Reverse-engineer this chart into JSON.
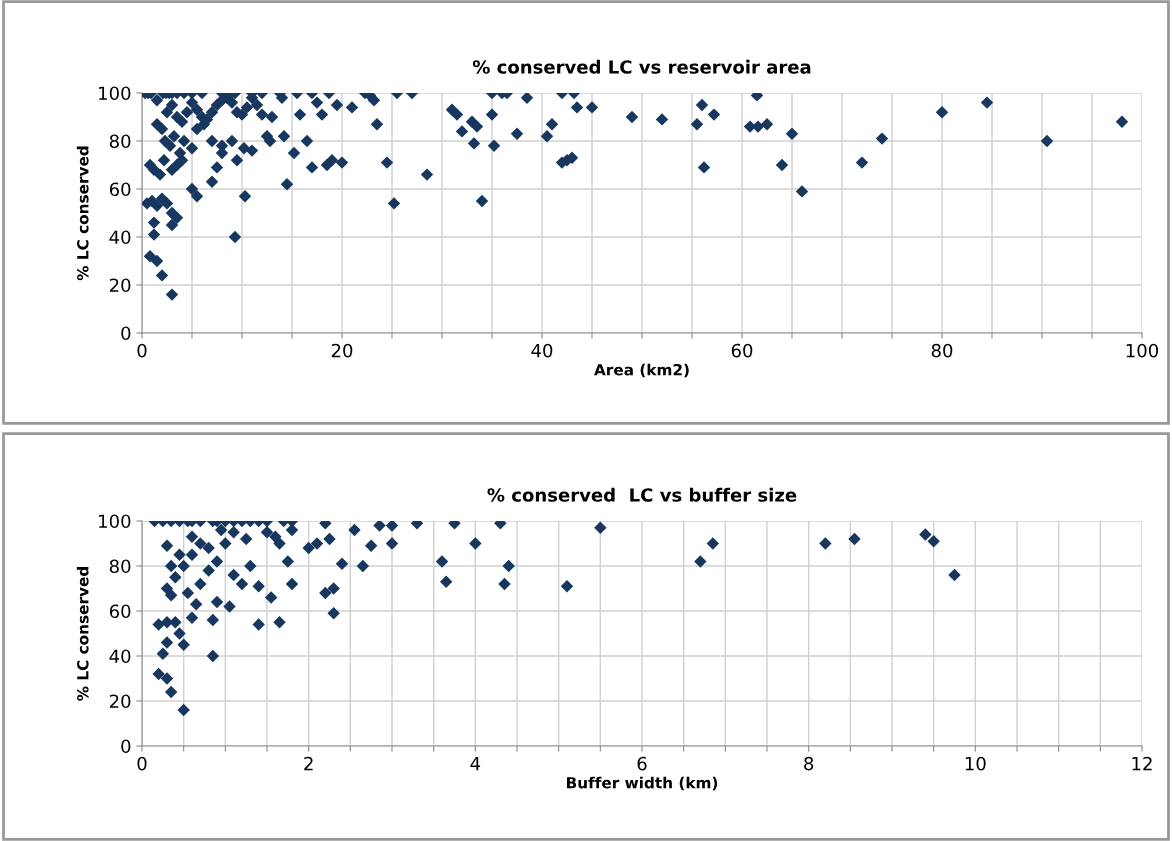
{
  "chart_data": [
    {
      "type": "scatter",
      "title": "% conserved LC vs reservoir area",
      "xlabel": "Area (km2)",
      "ylabel": "% LC conserved",
      "marker": "diamond",
      "grid": true,
      "xlim": [
        0,
        100
      ],
      "ylim": [
        0,
        100
      ],
      "yticks": [
        0,
        20,
        40,
        60,
        80,
        100
      ],
      "xticks": [
        0,
        {
          "value": 5,
          "label": null
        },
        {
          "value": 10,
          "label": null
        },
        {
          "value": 15,
          "label": null
        },
        20,
        {
          "value": 25,
          "label": null
        },
        {
          "value": 30,
          "label": null
        },
        {
          "value": 35,
          "label": null
        },
        40,
        {
          "value": 45,
          "label": null
        },
        {
          "value": 50,
          "label": null
        },
        {
          "value": 55,
          "label": null
        },
        60,
        {
          "value": 65,
          "label": null
        },
        {
          "value": 70,
          "label": null
        },
        {
          "value": 75,
          "label": null
        },
        80,
        {
          "value": 85,
          "label": null
        },
        {
          "value": 90,
          "label": null
        },
        {
          "value": 95,
          "label": null
        },
        100
      ],
      "series": [
        {
          "color": "#17375e",
          "x": [
            0.3,
            0.6,
            0.9,
            2.1,
            2.4,
            2.7,
            3.0,
            3.5,
            4.2,
            5,
            6,
            8,
            8.8,
            9.3,
            11,
            12,
            13.8,
            15.5,
            17,
            18.7,
            22.3,
            25.5,
            27,
            35,
            36.5,
            42,
            43.2,
            1.5,
            2.5,
            3,
            3.5,
            4,
            4.5,
            5,
            5.5,
            6,
            6.5,
            7,
            7.5,
            8,
            8.5,
            9,
            9.5,
            10,
            10.5,
            11,
            11.5,
            12,
            13,
            14,
            1.5,
            2,
            2.3,
            2.8,
            3.2,
            3.8,
            4.2,
            5,
            5.5,
            6.2,
            7,
            8,
            9,
            9.5,
            10.2,
            11,
            0.8,
            1.2,
            1.8,
            2.2,
            3,
            3.5,
            4,
            5,
            5.5,
            7,
            7.5,
            8,
            0.5,
            1,
            1.5,
            2,
            2.5,
            3,
            3.5,
            3,
            1.2,
            1.2,
            9.3,
            10.3,
            0.8,
            1.5,
            2,
            3,
            12.5,
            12.8,
            14.2,
            14.5,
            15.2,
            15.8,
            16.5,
            17,
            17.5,
            18,
            18.5,
            19,
            19.5,
            20,
            21,
            22.8,
            23.2,
            23.5,
            24.5,
            25.2,
            28.5,
            31,
            31.5,
            32,
            33,
            33.2,
            33.5,
            34,
            35,
            35.2,
            36,
            37.5,
            38.5,
            40.5,
            41,
            42,
            42.5,
            43,
            43.5,
            45,
            49,
            52,
            55.5,
            56,
            56.2,
            57.2,
            60.8,
            61.5,
            61.6,
            62.5,
            64,
            65,
            66,
            72,
            74,
            80,
            84.5,
            90.5,
            98
          ],
          "values": [
            100,
            100,
            100,
            100,
            100,
            100,
            100,
            100,
            100,
            100,
            100,
            100,
            100,
            100,
            100,
            100,
            100,
            100,
            100,
            100,
            100,
            100,
            100,
            100,
            100,
            100,
            100,
            97,
            92,
            95,
            90,
            88,
            92,
            96,
            93,
            90,
            89,
            92,
            95,
            97,
            98,
            96,
            92,
            91,
            94,
            98,
            95,
            91,
            90,
            98,
            87,
            85,
            80,
            78,
            82,
            75,
            80,
            77,
            85,
            87,
            80,
            78,
            80,
            72,
            77,
            76,
            70,
            68,
            66,
            72,
            68,
            70,
            72,
            60,
            57,
            63,
            69,
            75,
            54,
            55,
            53,
            56,
            54,
            50,
            48,
            45,
            46,
            41,
            40,
            57,
            32,
            30,
            24,
            16,
            82,
            80,
            82,
            62,
            75,
            91,
            80,
            69,
            96,
            91,
            70,
            72,
            95,
            71,
            94,
            99,
            97,
            87,
            71,
            54,
            66,
            93,
            91,
            84,
            88,
            79,
            86,
            55,
            91,
            78,
            100,
            83,
            98,
            82,
            87,
            71,
            72,
            73,
            94,
            94,
            90,
            89,
            87,
            95,
            69,
            91,
            86,
            99,
            86,
            87,
            70,
            83,
            59,
            71,
            81,
            92,
            96,
            80,
            88
          ]
        }
      ]
    },
    {
      "type": "scatter",
      "title": "% conserved  LC vs buffer size",
      "xlabel": "Buffer width (km)",
      "ylabel": "% LC conserved",
      "marker": "diamond",
      "grid": true,
      "xlim": [
        0,
        12
      ],
      "ylim": [
        0,
        100
      ],
      "yticks": [
        0,
        20,
        40,
        60,
        80,
        100
      ],
      "xticks": [
        0,
        {
          "value": 0.5,
          "label": null
        },
        {
          "value": 1,
          "label": null
        },
        {
          "value": 1.5,
          "label": null
        },
        2,
        {
          "value": 2.5,
          "label": null
        },
        {
          "value": 3,
          "label": null
        },
        {
          "value": 3.5,
          "label": null
        },
        4,
        {
          "value": 4.5,
          "label": null
        },
        {
          "value": 5,
          "label": null
        },
        {
          "value": 5.5,
          "label": null
        },
        6,
        {
          "value": 6.5,
          "label": null
        },
        {
          "value": 7,
          "label": null
        },
        {
          "value": 7.5,
          "label": null
        },
        8,
        {
          "value": 8.5,
          "label": null
        },
        {
          "value": 9,
          "label": null
        },
        {
          "value": 9.5,
          "label": null
        },
        10,
        {
          "value": 10.5,
          "label": null
        },
        {
          "value": 11,
          "label": null
        },
        {
          "value": 11.5,
          "label": null
        },
        12
      ],
      "series": [
        {
          "color": "#17375e",
          "x": [
            0.15,
            0.25,
            0.35,
            0.45,
            0.55,
            0.6,
            0.7,
            0.85,
            0.9,
            1.0,
            1.1,
            1.2,
            1.3,
            1.4,
            1.5,
            1.7,
            1.8,
            2.2,
            3.0,
            3.3,
            3.75,
            4.3,
            5.5,
            2.85,
            2.55,
            2.25,
            2.1,
            2.0,
            1.8,
            1.65,
            1.5,
            0.3,
            0.35,
            0.4,
            0.5,
            0.6,
            0.7,
            0.8,
            0.9,
            1.0,
            1.1,
            1.2,
            1.3,
            1.4,
            1.55,
            1.6,
            1.75,
            1.8,
            2.2,
            2.3,
            2.4,
            2.65,
            2.75,
            3.0,
            3.6,
            3.65,
            4.0,
            4.35,
            4.4,
            5.1,
            6.7,
            6.85,
            8.2,
            8.55,
            9.4,
            9.5,
            9.75,
            0.2,
            0.3,
            0.4,
            0.45,
            0.5,
            0.25,
            0.3,
            0.6,
            0.65,
            0.85,
            1.4,
            1.65,
            0.85,
            0.2,
            0.3,
            0.35,
            0.5,
            2.3,
            0.9,
            1.05,
            0.55,
            0.7,
            0.45,
            0.8,
            1.1,
            1.25,
            0.95,
            0.6,
            0.3,
            0.35
          ],
          "values": [
            100,
            100,
            100,
            100,
            100,
            100,
            100,
            100,
            100,
            100,
            100,
            100,
            100,
            100,
            100,
            100,
            100,
            99,
            98,
            99,
            99,
            99,
            97,
            98,
            96,
            92,
            90,
            88,
            96,
            90,
            95,
            70,
            67,
            75,
            80,
            85,
            90,
            88,
            82,
            90,
            76,
            72,
            80,
            71,
            66,
            93,
            82,
            72,
            68,
            70,
            81,
            80,
            89,
            90,
            82,
            73,
            90,
            72,
            80,
            71,
            82,
            90,
            90,
            92,
            94,
            91,
            76,
            54,
            55,
            55,
            50,
            45,
            41,
            46,
            57,
            63,
            56,
            54,
            55,
            40,
            32,
            30,
            24,
            16,
            59,
            64,
            62,
            68,
            72,
            85,
            78,
            95,
            92,
            96,
            93,
            89,
            80
          ]
        }
      ]
    }
  ]
}
